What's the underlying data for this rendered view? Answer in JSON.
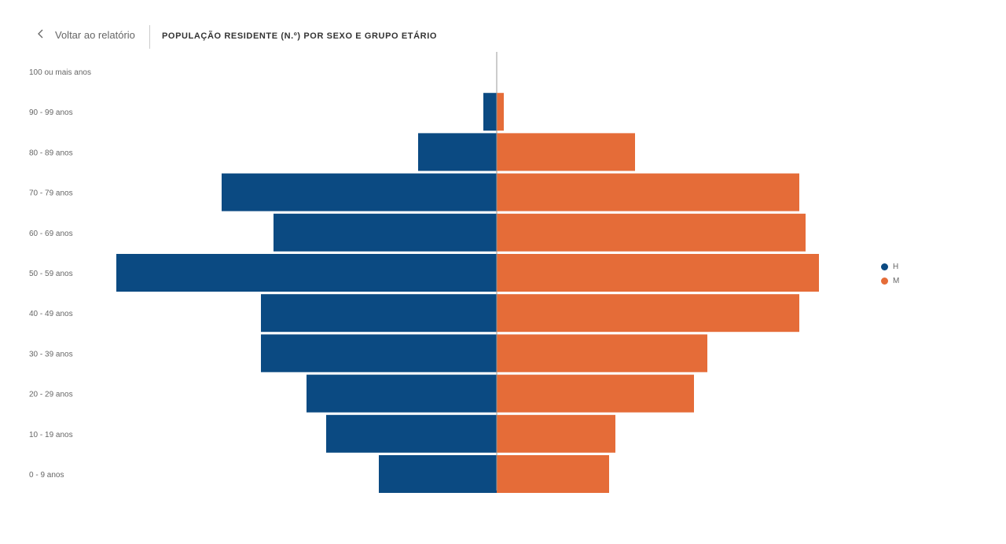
{
  "header": {
    "back_label": "Voltar ao relatório",
    "title": "POPULAÇÃO RESIDENTE (N.º) POR SEXO E GRUPO ETÁRIO"
  },
  "chart_data": {
    "type": "bar",
    "orientation": "population-pyramid",
    "title": "POPULAÇÃO RESIDENTE (N.º) POR SEXO E GRUPO ETÁRIO",
    "categories": [
      "100 ou mais anos",
      "90 - 99 anos",
      "80 - 89 anos",
      "70 - 79 anos",
      "60 - 69 anos",
      "50 - 59 anos",
      "40 - 49 anos",
      "30 - 39 anos",
      "20 - 29 anos",
      "10 - 19 anos",
      "0 - 9 anos"
    ],
    "series": [
      {
        "name": "H",
        "color": "#0b4a82",
        "values": [
          0,
          17,
          100,
          350,
          284,
          484,
          300,
          300,
          242,
          217,
          150
        ]
      },
      {
        "name": "M",
        "color": "#e56c38",
        "values": [
          0,
          9,
          176,
          385,
          393,
          410,
          385,
          268,
          251,
          151,
          143
        ]
      }
    ],
    "legend": "right"
  }
}
